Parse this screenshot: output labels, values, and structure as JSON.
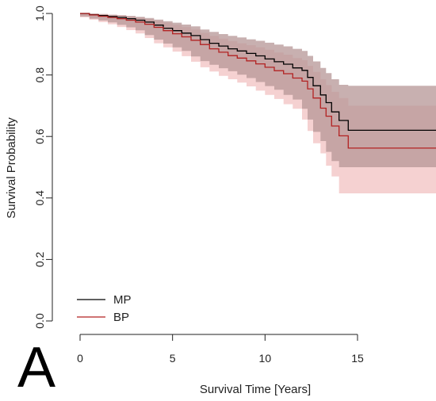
{
  "panel_label": "A",
  "chart_data": {
    "type": "line",
    "xlabel": "Survival Time [Years]",
    "ylabel": "Survival Probability",
    "xlim": [
      0,
      19.5
    ],
    "ylim": [
      0,
      1
    ],
    "xticks": [
      0,
      5,
      10,
      15
    ],
    "yticks": [
      0.0,
      0.2,
      0.4,
      0.6,
      0.8,
      1.0
    ],
    "legend_position": "bottom-left",
    "series": [
      {
        "name": "MP",
        "color": "#000000",
        "band_color": "#b59595",
        "x": [
          0,
          0.5,
          1,
          1.5,
          2,
          2.5,
          3,
          3.5,
          4,
          4.5,
          5,
          5.5,
          6,
          6.5,
          7,
          7.5,
          8,
          8.5,
          9,
          9.5,
          10,
          10.5,
          11,
          11.5,
          12,
          12.3,
          12.6,
          13,
          13.3,
          13.6,
          14,
          14.5,
          15,
          19.5
        ],
        "y": [
          1.0,
          0.996,
          0.993,
          0.99,
          0.987,
          0.983,
          0.978,
          0.972,
          0.962,
          0.952,
          0.944,
          0.936,
          0.928,
          0.915,
          0.903,
          0.894,
          0.885,
          0.878,
          0.87,
          0.862,
          0.852,
          0.843,
          0.835,
          0.823,
          0.815,
          0.792,
          0.765,
          0.735,
          0.71,
          0.68,
          0.652,
          0.62,
          0.62,
          0.62
        ],
        "lower": [
          1.0,
          0.99,
          0.983,
          0.977,
          0.971,
          0.963,
          0.955,
          0.945,
          0.93,
          0.915,
          0.902,
          0.89,
          0.878,
          0.86,
          0.845,
          0.833,
          0.822,
          0.812,
          0.801,
          0.79,
          0.777,
          0.764,
          0.752,
          0.735,
          0.72,
          0.69,
          0.655,
          0.615,
          0.585,
          0.55,
          0.52,
          0.5,
          0.5,
          0.5
        ],
        "upper": [
          1.0,
          1.0,
          0.998,
          0.996,
          0.994,
          0.992,
          0.989,
          0.985,
          0.98,
          0.975,
          0.97,
          0.964,
          0.958,
          0.948,
          0.94,
          0.933,
          0.927,
          0.922,
          0.916,
          0.911,
          0.905,
          0.899,
          0.893,
          0.885,
          0.878,
          0.862,
          0.844,
          0.823,
          0.806,
          0.786,
          0.768,
          0.765,
          0.765,
          0.765
        ]
      },
      {
        "name": "BP",
        "color": "#b22222",
        "band_color": "#f4cccc",
        "x": [
          0,
          0.5,
          1,
          1.5,
          2,
          2.5,
          3,
          3.5,
          4,
          4.5,
          5,
          5.5,
          6,
          6.5,
          7,
          7.5,
          8,
          8.5,
          9,
          9.5,
          10,
          10.5,
          11,
          11.5,
          12,
          12.3,
          12.6,
          13,
          13.3,
          13.6,
          14,
          14.5,
          15,
          19.5
        ],
        "y": [
          1.0,
          0.995,
          0.991,
          0.987,
          0.983,
          0.978,
          0.972,
          0.965,
          0.955,
          0.944,
          0.934,
          0.924,
          0.913,
          0.899,
          0.885,
          0.874,
          0.863,
          0.855,
          0.846,
          0.836,
          0.825,
          0.814,
          0.804,
          0.79,
          0.78,
          0.755,
          0.725,
          0.692,
          0.666,
          0.634,
          0.602,
          0.562,
          0.562,
          0.562
        ],
        "lower": [
          1.0,
          0.988,
          0.98,
          0.972,
          0.965,
          0.956,
          0.946,
          0.935,
          0.92,
          0.903,
          0.89,
          0.876,
          0.861,
          0.843,
          0.825,
          0.811,
          0.797,
          0.786,
          0.775,
          0.763,
          0.749,
          0.735,
          0.722,
          0.705,
          0.69,
          0.655,
          0.618,
          0.578,
          0.545,
          0.505,
          0.47,
          0.415,
          0.415,
          0.415
        ],
        "upper": [
          1.0,
          1.0,
          0.998,
          0.996,
          0.994,
          0.991,
          0.987,
          0.982,
          0.976,
          0.97,
          0.963,
          0.956,
          0.948,
          0.937,
          0.927,
          0.918,
          0.91,
          0.903,
          0.897,
          0.89,
          0.882,
          0.873,
          0.866,
          0.855,
          0.848,
          0.83,
          0.81,
          0.786,
          0.767,
          0.745,
          0.725,
          0.7,
          0.7,
          0.7
        ]
      }
    ]
  }
}
